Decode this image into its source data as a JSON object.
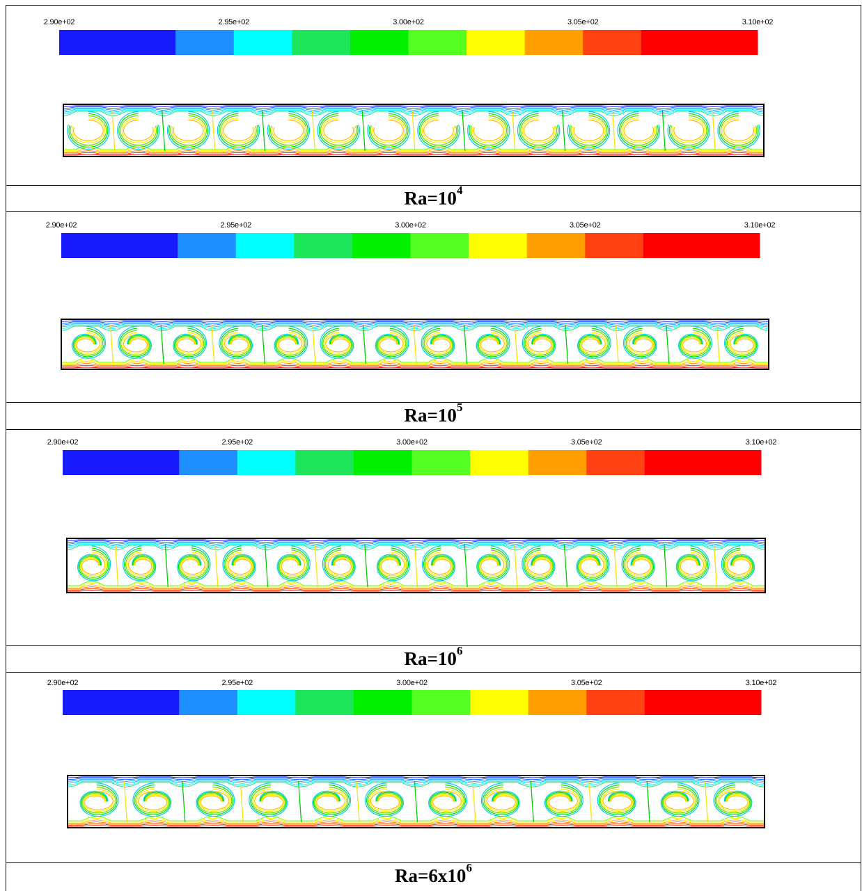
{
  "figure": {
    "colorbar": {
      "tick_labels": [
        "2.90e+02",
        "2.95e+02",
        "3.00e+02",
        "3.05e+02",
        "3.10e+02"
      ],
      "colors": [
        "#1a1aff",
        "#1f8fff",
        "#00ffff",
        "#1ee65a",
        "#00f000",
        "#55ff22",
        "#ffff00",
        "#ffa000",
        "#ff4010",
        "#ff0000"
      ],
      "band_count": 10
    },
    "panels": [
      {
        "caption_base": "Ra=10",
        "caption_exp": "4",
        "cells": 14
      },
      {
        "caption_base": "Ra=10",
        "caption_exp": "5",
        "cells": 14
      },
      {
        "caption_base": "Ra=10",
        "caption_exp": "6",
        "cells": 14
      },
      {
        "caption_base": "Ra=6x10",
        "caption_exp": "6",
        "cells": 12
      }
    ]
  }
}
